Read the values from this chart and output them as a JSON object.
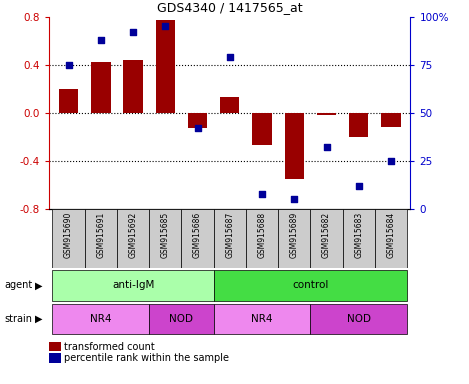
{
  "title": "GDS4340 / 1417565_at",
  "samples": [
    "GSM915690",
    "GSM915691",
    "GSM915692",
    "GSM915685",
    "GSM915686",
    "GSM915687",
    "GSM915688",
    "GSM915689",
    "GSM915682",
    "GSM915683",
    "GSM915684"
  ],
  "transformed_count": [
    0.2,
    0.42,
    0.44,
    0.77,
    -0.13,
    0.13,
    -0.27,
    -0.55,
    -0.02,
    -0.2,
    -0.12
  ],
  "percentile_rank": [
    75,
    88,
    92,
    95,
    42,
    79,
    8,
    5,
    32,
    12,
    25
  ],
  "agent_groups": [
    {
      "label": "anti-IgM",
      "start": 0,
      "end": 5,
      "color": "#aaffaa"
    },
    {
      "label": "control",
      "start": 5,
      "end": 11,
      "color": "#44dd44"
    }
  ],
  "strain_groups": [
    {
      "label": "NR4",
      "start": 0,
      "end": 3,
      "color": "#ee88ee"
    },
    {
      "label": "NOD",
      "start": 3,
      "end": 5,
      "color": "#cc44cc"
    },
    {
      "label": "NR4",
      "start": 5,
      "end": 8,
      "color": "#ee88ee"
    },
    {
      "label": "NOD",
      "start": 8,
      "end": 11,
      "color": "#cc44cc"
    }
  ],
  "bar_color": "#990000",
  "dot_color": "#000099",
  "ylim_left": [
    -0.8,
    0.8
  ],
  "ylim_right": [
    0,
    100
  ],
  "yticks_left": [
    -0.8,
    -0.4,
    0.0,
    0.4,
    0.8
  ],
  "yticks_right": [
    0,
    25,
    50,
    75,
    100
  ],
  "ytick_labels_right": [
    "0",
    "25",
    "50",
    "75",
    "100%"
  ],
  "legend_bar_label": "transformed count",
  "legend_dot_label": "percentile rank within the sample",
  "zero_line_color": "#cc0000",
  "agent_label": "agent",
  "strain_label": "strain",
  "sample_box_color": "#cccccc",
  "plot_bg": "#ffffff"
}
